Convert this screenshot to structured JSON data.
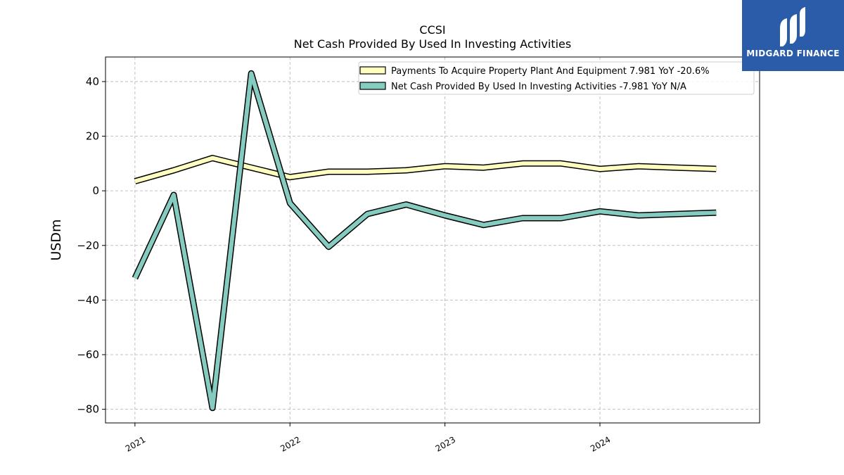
{
  "chart_data": {
    "type": "line",
    "title": "CCSI",
    "subtitle": "Net Cash Provided By Used In Investing Activities",
    "ylabel": "USDm",
    "xlabel": "",
    "ylim": [
      -85,
      49
    ],
    "xlim": [
      2020.81,
      2025.03
    ],
    "yticks": [
      40,
      20,
      0,
      -20,
      -40,
      -60,
      -80
    ],
    "ytick_labels": [
      "40",
      "20",
      "0",
      "−20",
      "−40",
      "−60",
      "−80"
    ],
    "xticks": [
      2021,
      2022,
      2023,
      2024
    ],
    "xtick_labels": [
      "2021",
      "2022",
      "2023",
      "2024"
    ],
    "grid": true,
    "legend_position": "top-right",
    "x": [
      2021.0,
      2021.25,
      2021.5,
      2021.75,
      2022.0,
      2022.25,
      2022.5,
      2022.75,
      2023.0,
      2023.25,
      2023.5,
      2023.75,
      2024.0,
      2024.25,
      2024.5,
      2024.75
    ],
    "series": [
      {
        "name": "Payments To Acquire Property Plant And Equipment  7.981 YoY -20.6%",
        "color": "#ffffc0",
        "values": [
          3.5,
          7.5,
          12.0,
          8.5,
          5.0,
          7.0,
          7.0,
          7.5,
          9.0,
          8.5,
          10.0,
          10.0,
          8.0,
          9.0,
          8.5,
          8.0
        ]
      },
      {
        "name": "Net Cash Provided By Used In Investing Activities  -7.981 YoY N/A",
        "color": "#85cbbf",
        "values": [
          -32.0,
          -1.5,
          -79.5,
          43.0,
          -4.5,
          -20.5,
          -8.5,
          -5.0,
          -9.0,
          -12.5,
          -10.0,
          -10.0,
          -7.5,
          -9.0,
          -8.5,
          -8.0
        ]
      }
    ]
  },
  "logo": {
    "text": "MIDGARD FINANCE"
  }
}
